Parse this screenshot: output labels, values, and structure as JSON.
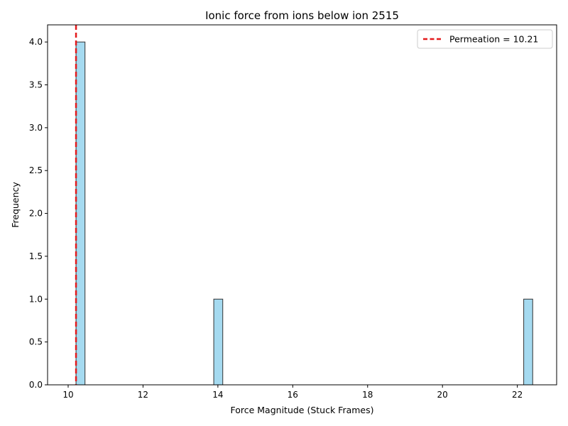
{
  "chart_data": {
    "type": "bar",
    "title": "Ionic force from ions below ion 2515",
    "xlabel": "Force Magnitude (Stuck Frames)",
    "ylabel": "Frequency",
    "xlim": [
      9.45,
      23.05
    ],
    "ylim": [
      0,
      4.2
    ],
    "xticks": [
      "10",
      "12",
      "14",
      "16",
      "18",
      "20",
      "22"
    ],
    "xtick_values": [
      10,
      12,
      14,
      16,
      18,
      20,
      22
    ],
    "yticks": [
      "0.0",
      "0.5",
      "1.0",
      "1.5",
      "2.0",
      "2.5",
      "3.0",
      "3.5",
      "4.0"
    ],
    "ytick_values": [
      0,
      0.5,
      1,
      1.5,
      2,
      2.5,
      3,
      3.5,
      4
    ],
    "bins": [
      {
        "start": 10.21,
        "end": 10.45,
        "count": 4
      },
      {
        "start": 13.89,
        "end": 14.13,
        "count": 1
      },
      {
        "start": 22.17,
        "end": 22.41,
        "count": 1
      }
    ],
    "threshold": {
      "value": 10.21,
      "label": "Permeation = 10.21"
    },
    "bar_color": "#87ceeb",
    "bar_edge_color": "#333333",
    "threshold_color": "#e31a1c",
    "legend_position": "top-right",
    "grid": false
  }
}
